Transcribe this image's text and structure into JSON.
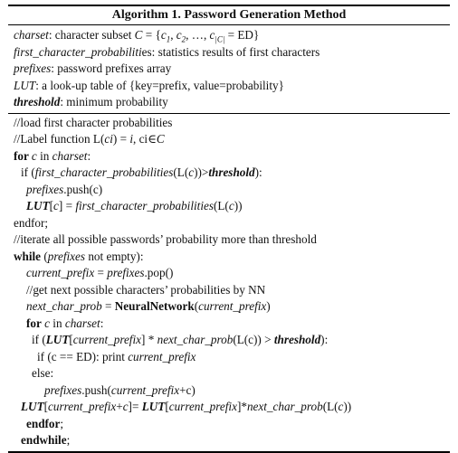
{
  "title": "Algorithm 1. Password Generation Method",
  "defs": {
    "charset": {
      "name": "charset",
      "desc_a": ": character subset ",
      "set_var": "C",
      "set_eq": " = {",
      "c1": "c",
      "s1": "1",
      "sep1": ", ",
      "c2": "c",
      "s2": "2",
      "sep2": ", …, ",
      "cn": "c",
      "sn": "|C|",
      "end": " = ED}"
    },
    "fcp": {
      "name": "first_character_probabiliti",
      "rest": "es: statistics results of first characters"
    },
    "prefixes": {
      "name": "prefixes",
      "desc": ": password prefixes array"
    },
    "lut": {
      "name": "LUT",
      "desc": ": a look-up table of {key=prefix, value=probability}"
    },
    "threshold": {
      "name": "threshold",
      "desc": ": minimum probability"
    }
  },
  "body": {
    "l1": "//load first character probabilities",
    "l2a": "//Label function L(",
    "l2b": "ci",
    "l2c": ") = ",
    "l2d": "i",
    "l2e": ", ci∈",
    "l2f": "C",
    "l3a": "for ",
    "l3b": "c",
    "l3c": " in ",
    "l3d": "charset",
    "l3e": ":",
    "l4a": "if (",
    "l4b": "first_character_probabilities",
    "l4c": "(L(",
    "l4d": "c",
    "l4e": "))>",
    "l4f": "threshold",
    "l4g": "):",
    "l5a": "prefixes",
    "l5b": ".push(c)",
    "l6a": "LUT",
    "l6b": "[",
    "l6c": "c",
    "l6d": "] = ",
    "l6e": "first_character_probabilities",
    "l6f": "(L(",
    "l6g": "c",
    "l6h": "))",
    "l7": "endfor;",
    "l8": "//iterate all possible passwords’ probability more than threshold",
    "l9a": "while",
    "l9b": " (",
    "l9c": "prefixes",
    "l9d": " not empty):",
    "l10a": "current_prefix",
    "l10b": " = ",
    "l10c": "prefixes",
    "l10d": ".pop()",
    "l11": "//get next possible characters’ probabilities by NN",
    "l12a": "next_char_prob",
    "l12b": " = ",
    "l12c": "NeuralNetwork",
    "l12d": "(",
    "l12e": "current_prefix",
    "l12f": ")",
    "l13a": "for",
    "l13b": " ",
    "l13c": "c",
    "l13d": " in ",
    "l13e": "charset",
    "l13f": ":",
    "l14a": "if (",
    "l14b": "LUT",
    "l14c": "[",
    "l14d": "current_prefix",
    "l14e": "] * ",
    "l14f": "next_char_prob",
    "l14g": "(L(c)) > ",
    "l14h": "threshold",
    "l14i": "):",
    "l15a": "if (c == ED): print ",
    "l15b": "current_prefix",
    "l16": "else:",
    "l17a": "prefixes",
    "l17b": ".push(",
    "l17c": "current_prefix",
    "l17d": "+c)",
    "l18a": "LUT",
    "l18b": "[",
    "l18c": "current_prefix",
    "l18d": "+",
    "l18e": "c",
    "l18f": "]= ",
    "l18g": "LUT",
    "l18h": "[",
    "l18i": "current_prefix",
    "l18j": "]*",
    "l18k": "next_char_prob",
    "l18l": "(L(",
    "l18m": "c",
    "l18n": "))",
    "l19": "endfor",
    "l19b": ";",
    "l20": "endwhile",
    "l20b": ";"
  }
}
